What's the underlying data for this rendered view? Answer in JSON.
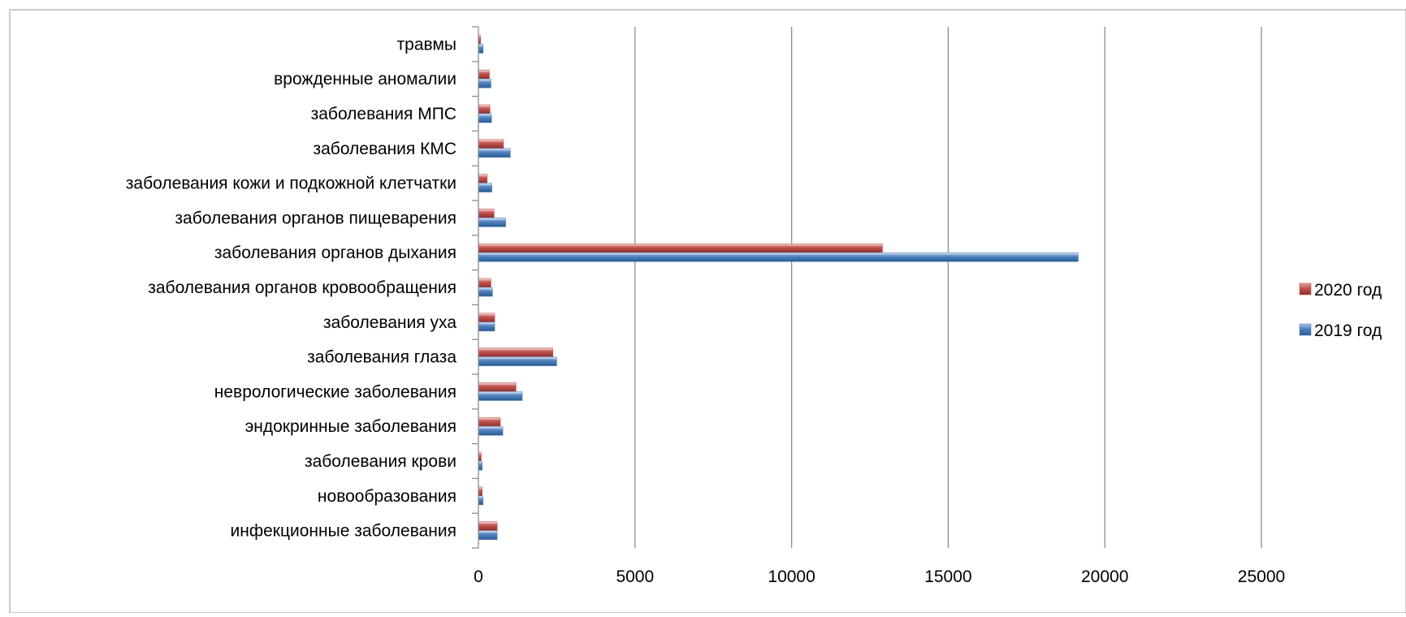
{
  "chart_data": {
    "type": "bar",
    "orientation": "horizontal",
    "title": "",
    "xlabel": "",
    "ylabel": "",
    "xlim": [
      0,
      25000
    ],
    "xticks": [
      0,
      5000,
      10000,
      15000,
      20000,
      25000
    ],
    "grid": "vertical",
    "legend": "right",
    "categories": [
      "инфекционные заболевания",
      "новообразования",
      "заболевания крови",
      "эндокринные заболевания",
      "неврологические заболевания",
      "заболевания глаза",
      "заболевания уха",
      "заболевания органов кровообращения",
      "заболевания органов дыхания",
      "заболевания органов пищеварения",
      "заболевания кожи и подкожной клетчатки",
      "заболевания КМС",
      "заболевания МПС",
      "врожденные аномалии",
      "травмы"
    ],
    "series": [
      {
        "name": "2019 год",
        "color": "#4f81bd",
        "values": [
          600,
          150,
          120,
          780,
          1400,
          2500,
          520,
          450,
          19150,
          870,
          430,
          1020,
          420,
          400,
          150
        ]
      },
      {
        "name": "2020 год",
        "color": "#c0504d",
        "values": [
          600,
          120,
          90,
          700,
          1200,
          2380,
          520,
          400,
          12900,
          500,
          280,
          800,
          370,
          350,
          70
        ]
      }
    ]
  }
}
